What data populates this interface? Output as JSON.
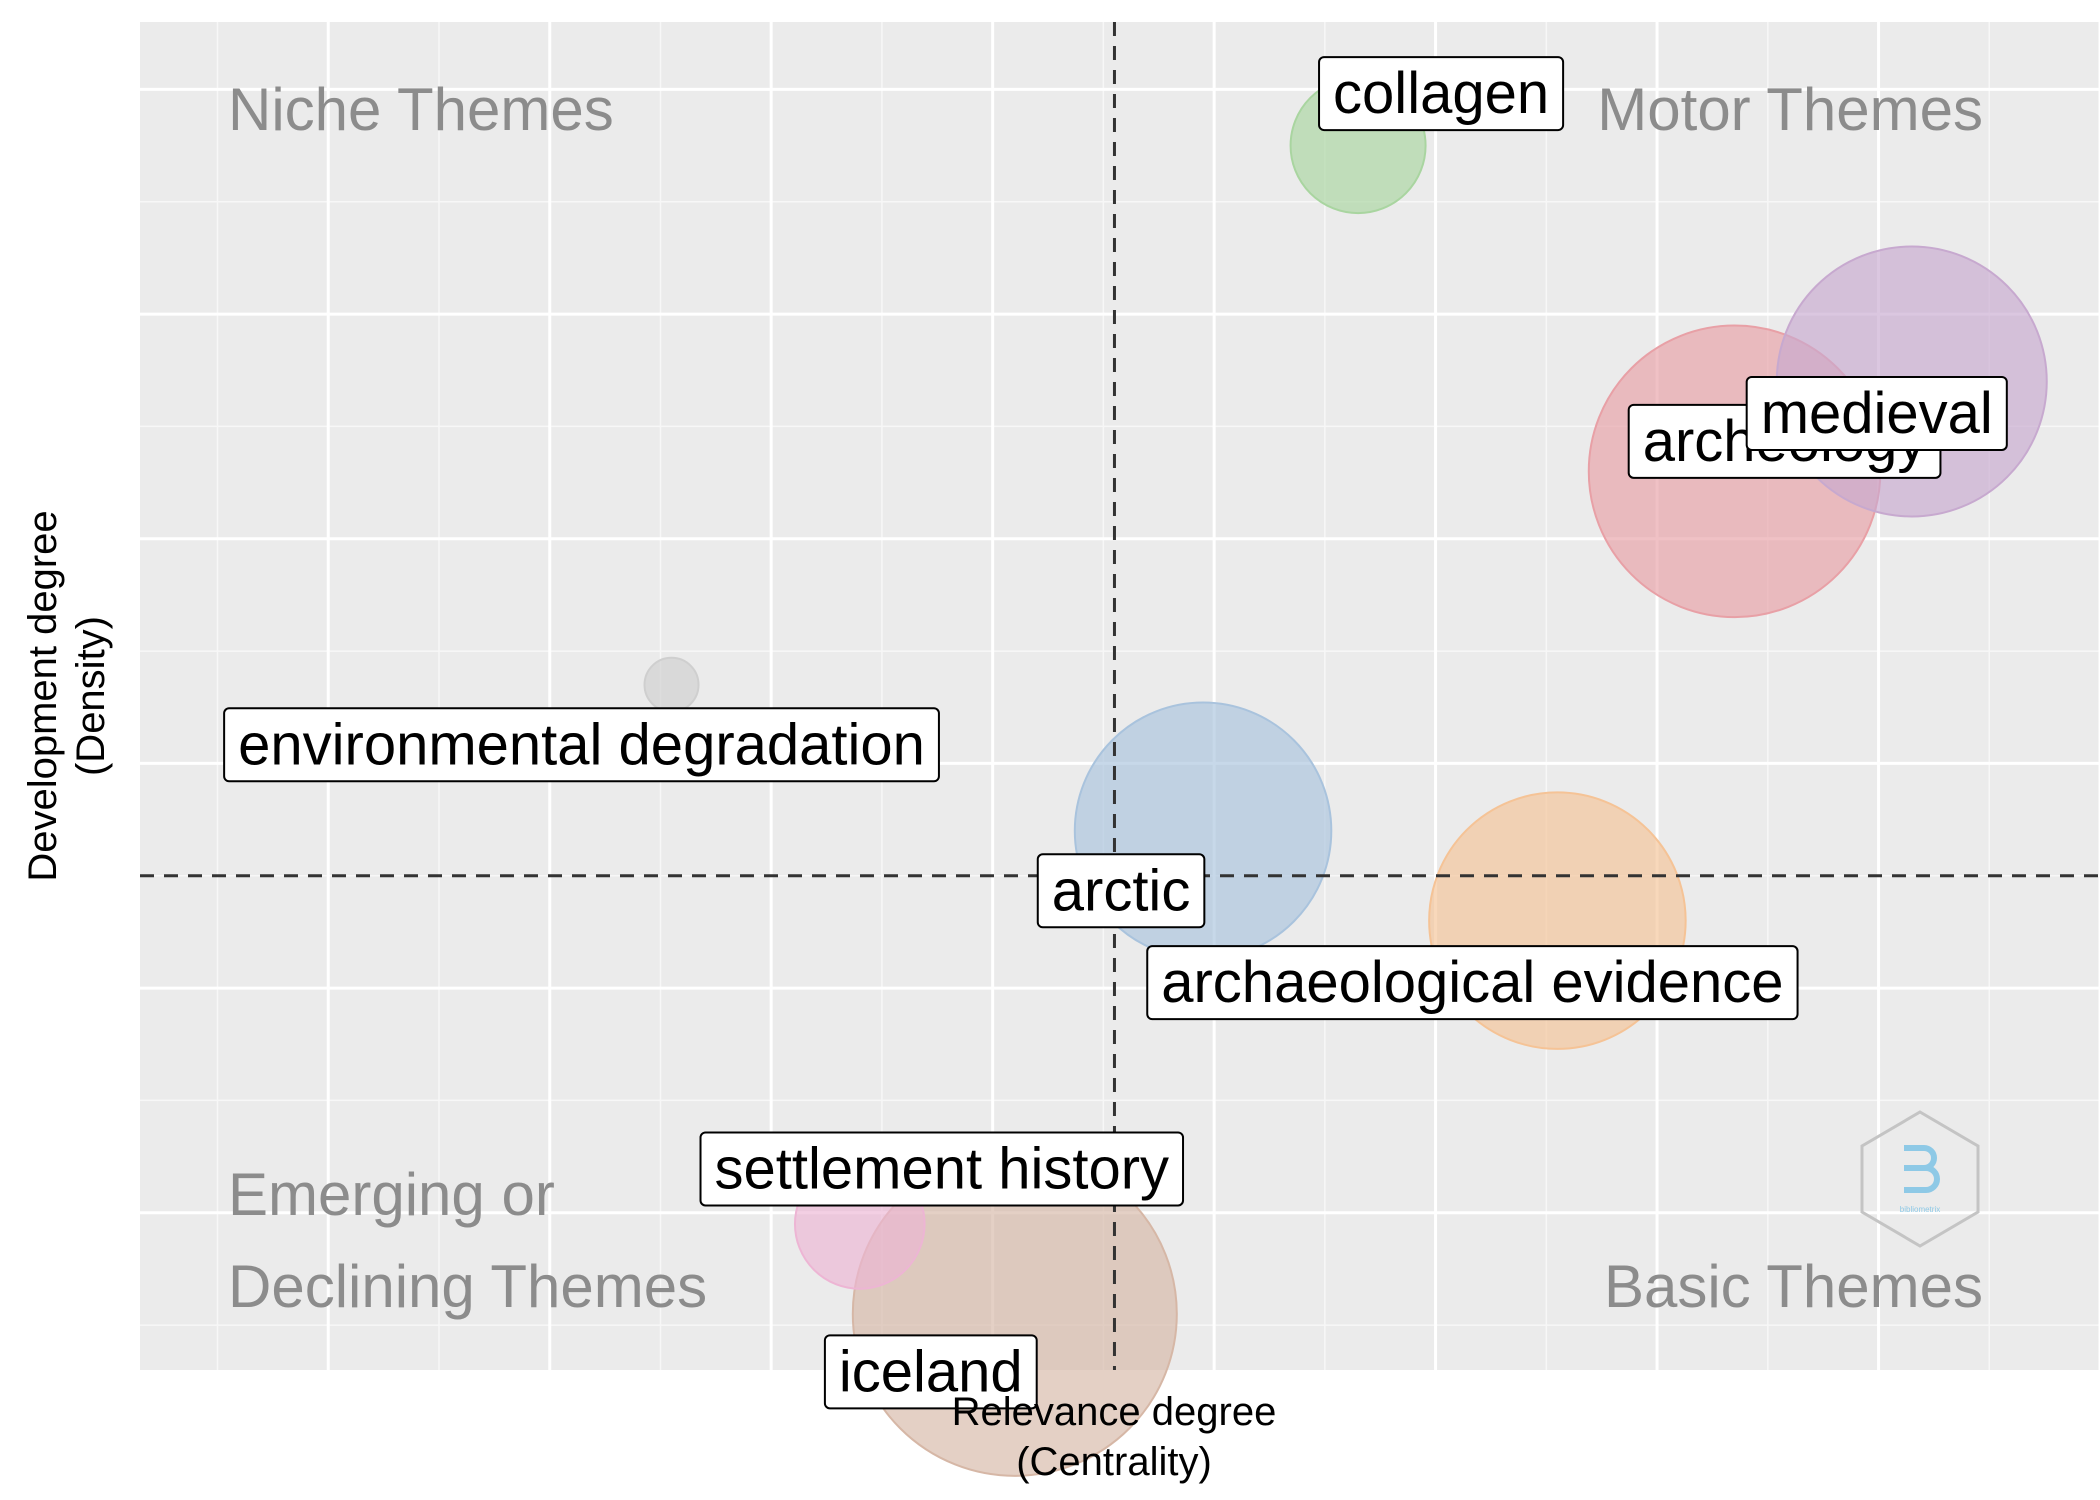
{
  "chart_data": {
    "type": "scatter",
    "xlabel": [
      "Relevance degree",
      "(Centrality)"
    ],
    "ylabel": [
      "Development degree",
      "(Density)"
    ],
    "xlim": [
      -0.17,
      1.6
    ],
    "ylim": [
      -0.14,
      1.06
    ],
    "grid": true,
    "xbreaks": [
      0,
      0.2,
      0.4,
      0.6,
      0.8,
      1.0,
      1.2,
      1.4,
      1.6
    ],
    "ybreaks": [
      0,
      0.2,
      0.4,
      0.6,
      0.8,
      1.0
    ],
    "crosshair": {
      "x": 0.71,
      "y": 0.3
    },
    "quadrants": {
      "top_left": "Niche Themes",
      "top_right": "Motor Themes",
      "bottom_left": [
        "Emerging or",
        "Declining Themes"
      ],
      "bottom_right": "Basic Themes"
    },
    "points": [
      {
        "label": "collagen",
        "x": 0.93,
        "y": 0.95,
        "size": 50,
        "color": "#a9d5a0"
      },
      {
        "label": "medieval",
        "x": 1.43,
        "y": 0.74,
        "size": 100,
        "color": "#c7a9cf"
      },
      {
        "label": "archeology",
        "x": 1.27,
        "y": 0.66,
        "size": 108,
        "color": "#e8a0a6"
      },
      {
        "label": "environmental degradation",
        "x": 0.31,
        "y": 0.47,
        "size": 20,
        "color": "#cfcfcf"
      },
      {
        "label": "arctic",
        "x": 0.79,
        "y": 0.34,
        "size": 95,
        "color": "#a9c3dd"
      },
      {
        "label": "archaeological evidence",
        "x": 1.11,
        "y": 0.26,
        "size": 95,
        "color": "#f5c396"
      },
      {
        "label": "settlement history",
        "x": 0.48,
        "y": -0.01,
        "size": 48,
        "color": "#edb5d4"
      },
      {
        "label": "iceland",
        "x": 0.62,
        "y": -0.09,
        "size": 120,
        "color": "#d6b7a6"
      }
    ]
  },
  "logo": {
    "text": "bibliometrix",
    "icon": "bibliometrix-hexagon-logo"
  }
}
